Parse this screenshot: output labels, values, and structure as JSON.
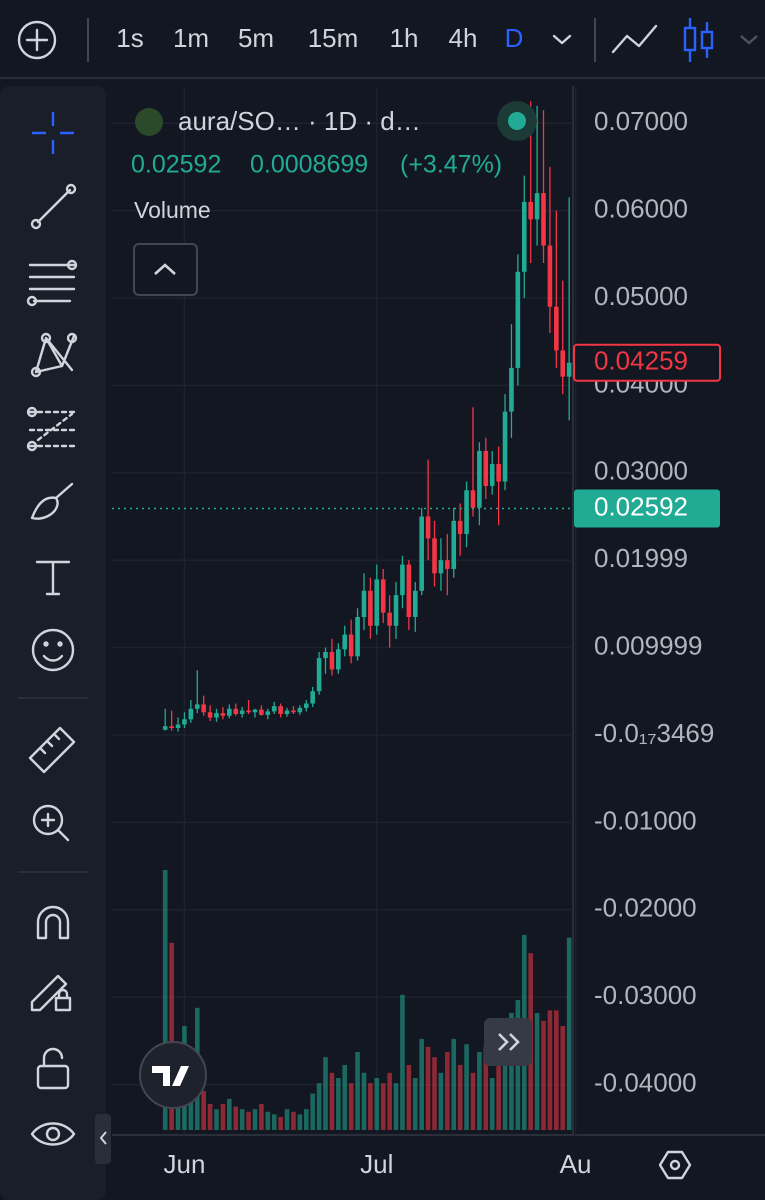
{
  "toolbar": {
    "intervals": [
      "1s",
      "1m",
      "5m",
      "15m",
      "1h",
      "4h",
      "D"
    ]
  },
  "chart_data": {
    "type": "candlestick",
    "symbol": "aura/SO…  · 1D · d…",
    "price": 0.02592,
    "change": 0.0008699,
    "change_percent": "(+3.47%)",
    "volume_label": "Volume",
    "open": [
      0.0006,
      0.001,
      0.0008,
      0.0012,
      0.0018,
      0.003,
      0.0035,
      0.0026,
      0.002,
      0.0025,
      0.0022,
      0.003,
      0.0024,
      0.0028,
      0.0026,
      0.0029,
      0.0023,
      0.0027,
      0.0033,
      0.0024,
      0.0028,
      0.0026,
      0.0031,
      0.0036,
      0.005,
      0.0088,
      0.0095,
      0.0075,
      0.0098,
      0.0115,
      0.009,
      0.0135,
      0.0165,
      0.0125,
      0.0178,
      0.014,
      0.0125,
      0.016,
      0.0195,
      0.0135,
      0.0165,
      0.025,
      0.0225,
      0.0185,
      0.02,
      0.019,
      0.0245,
      0.023,
      0.028,
      0.026,
      0.0325,
      0.0285,
      0.031,
      0.029,
      0.037,
      0.042,
      0.053,
      0.061,
      0.059,
      0.062,
      0.056,
      0.049,
      0.044,
      0.041
    ],
    "high": [
      0.003,
      0.0028,
      0.002,
      0.0026,
      0.004,
      0.0074,
      0.0045,
      0.0034,
      0.003,
      0.0032,
      0.0035,
      0.0036,
      0.0032,
      0.004,
      0.003,
      0.0034,
      0.003,
      0.0038,
      0.0036,
      0.0031,
      0.0033,
      0.0034,
      0.004,
      0.0055,
      0.0095,
      0.01,
      0.011,
      0.0105,
      0.0125,
      0.0132,
      0.0145,
      0.0185,
      0.018,
      0.0195,
      0.019,
      0.016,
      0.0175,
      0.0205,
      0.02,
      0.0175,
      0.026,
      0.0315,
      0.0245,
      0.0225,
      0.023,
      0.026,
      0.0265,
      0.029,
      0.0375,
      0.0335,
      0.034,
      0.0325,
      0.033,
      0.039,
      0.047,
      0.055,
      0.064,
      0.0725,
      0.072,
      0.0715,
      0.065,
      0.06,
      0.052,
      0.0615
    ],
    "low": [
      0.0005,
      0.0005,
      0.0004,
      0.0008,
      0.0014,
      0.0025,
      0.0022,
      0.0016,
      0.0015,
      0.0018,
      0.0019,
      0.0022,
      0.002,
      0.0024,
      0.002,
      0.0022,
      0.0018,
      0.0024,
      0.002,
      0.0021,
      0.0024,
      0.0023,
      0.0027,
      0.0032,
      0.0046,
      0.007,
      0.0068,
      0.007,
      0.009,
      0.0082,
      0.0085,
      0.012,
      0.011,
      0.0115,
      0.0128,
      0.01,
      0.011,
      0.0145,
      0.012,
      0.0118,
      0.016,
      0.02,
      0.017,
      0.0165,
      0.016,
      0.018,
      0.0205,
      0.0215,
      0.025,
      0.024,
      0.027,
      0.0275,
      0.024,
      0.028,
      0.034,
      0.04,
      0.05,
      0.054,
      0.056,
      0.054,
      0.046,
      0.042,
      0.039,
      0.036
    ],
    "close": [
      0.001,
      0.0008,
      0.0012,
      0.0018,
      0.003,
      0.0035,
      0.0026,
      0.002,
      0.0025,
      0.0022,
      0.003,
      0.0024,
      0.0028,
      0.0026,
      0.0029,
      0.0023,
      0.0027,
      0.0033,
      0.0024,
      0.0028,
      0.0026,
      0.0031,
      0.0036,
      0.005,
      0.0088,
      0.0095,
      0.0075,
      0.0098,
      0.0115,
      0.009,
      0.0135,
      0.0165,
      0.0125,
      0.0178,
      0.014,
      0.0125,
      0.016,
      0.0195,
      0.0135,
      0.0165,
      0.025,
      0.0225,
      0.0185,
      0.02,
      0.019,
      0.0245,
      0.023,
      0.028,
      0.026,
      0.0325,
      0.0285,
      0.031,
      0.029,
      0.037,
      0.042,
      0.053,
      0.061,
      0.059,
      0.062,
      0.056,
      0.049,
      0.044,
      0.041,
      0.04259
    ],
    "volume": [
      100,
      72,
      30,
      40,
      12,
      47,
      15,
      10,
      8,
      10,
      12,
      9,
      8,
      7,
      8,
      10,
      7,
      6,
      5,
      8,
      7,
      6,
      8,
      14,
      18,
      28,
      22,
      20,
      25,
      18,
      30,
      22,
      18,
      20,
      18,
      22,
      18,
      52,
      25,
      20,
      35,
      32,
      28,
      22,
      30,
      35,
      25,
      33,
      22,
      30,
      32,
      20,
      25,
      35,
      45,
      50,
      75,
      68,
      45,
      42,
      46,
      46,
      40,
      74
    ],
    "volume_lim": [
      0,
      100
    ],
    "up_color": "#22ab94",
    "down_color": "#f23645",
    "xlim": [
      -8.3,
      63.6
    ],
    "xticks": [
      {
        "value": 3,
        "label": "Jun"
      },
      {
        "value": 33,
        "label": "Jul"
      },
      {
        "value": 64,
        "label": "Au"
      }
    ],
    "ylim": [
      -0.04577,
      0.07403
    ],
    "yticks": [
      {
        "value": 0.07,
        "label": "0.07000"
      },
      {
        "value": 0.06,
        "label": "0.06000"
      },
      {
        "value": 0.05,
        "label": "0.05000"
      },
      {
        "value": 0.04,
        "label": "0.04000"
      },
      {
        "value": 0.03,
        "label": "0.03000"
      },
      {
        "value": 0.01999,
        "label": "0.01999"
      },
      {
        "value": 0.009999,
        "label": "0.009999"
      },
      {
        "value": -3.469e-18,
        "label": "-0.0₁₇3469"
      },
      {
        "value": -0.01,
        "label": "-0.01000"
      },
      {
        "value": -0.02,
        "label": "-0.02000"
      },
      {
        "value": -0.03,
        "label": "-0.03000"
      },
      {
        "value": -0.04,
        "label": "-0.04000"
      }
    ],
    "grid": true,
    "last_price": {
      "value": 0.04259,
      "color": "#f23645"
    },
    "price_line": {
      "value": 0.02592,
      "color": "#22ab94"
    }
  }
}
